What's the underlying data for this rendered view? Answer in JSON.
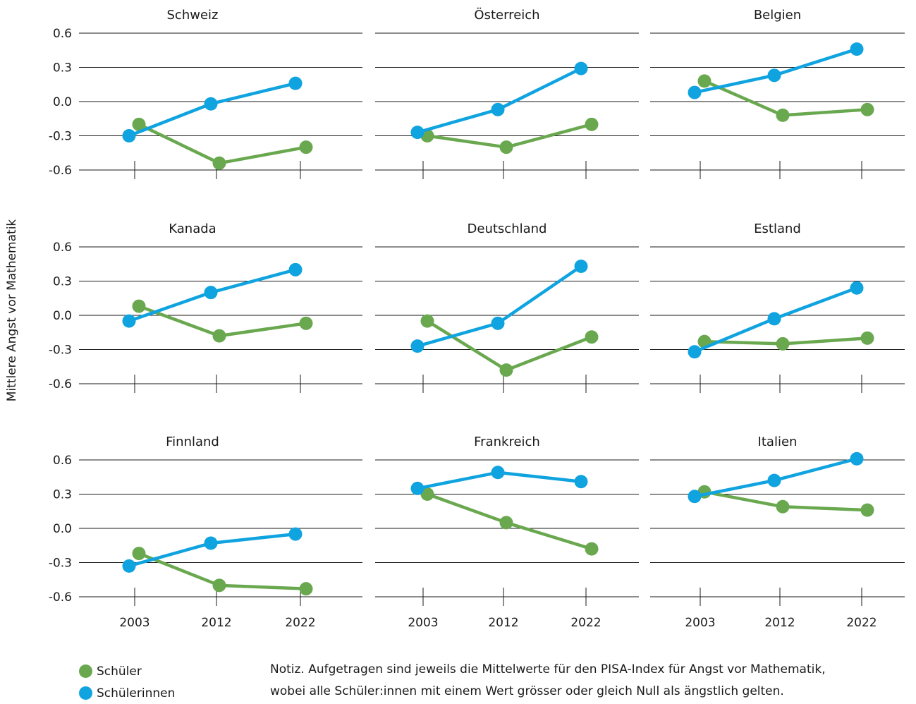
{
  "y_axis_label": "Mittlere Angst vor Mathematik",
  "colors": {
    "boys": "#6aa84f",
    "girls": "#0fa3df",
    "axis": "#1a1a1a"
  },
  "legend": {
    "boys": "Schüler",
    "girls": "Schülerinnen"
  },
  "note": {
    "line1": "Notiz. Aufgetragen sind jeweils die Mittelwerte für den PISA-Index für Angst vor Mathematik,",
    "line2": "wobei alle Schüler:innen mit einem Wert grösser oder gleich Null als ängstlich gelten."
  },
  "chart_data": {
    "type": "line",
    "layout": "small-multiples 3x3",
    "x": [
      "2003",
      "2012",
      "2022"
    ],
    "y_ticks": [
      "0.6",
      "0.3",
      "0.0",
      "-0.3",
      "-0.6"
    ],
    "ylim": [
      -0.6,
      0.6
    ],
    "series_names": [
      "Schüler",
      "Schülerinnen"
    ],
    "panels": [
      {
        "title": "Schweiz",
        "boys": [
          -0.2,
          -0.54,
          -0.4
        ],
        "girls": [
          -0.3,
          -0.02,
          0.16
        ]
      },
      {
        "title": "Österreich",
        "boys": [
          -0.3,
          -0.4,
          -0.2
        ],
        "girls": [
          -0.27,
          -0.07,
          0.29
        ]
      },
      {
        "title": "Belgien",
        "boys": [
          0.18,
          -0.12,
          -0.07
        ],
        "girls": [
          0.08,
          0.23,
          0.46
        ]
      },
      {
        "title": "Kanada",
        "boys": [
          0.08,
          -0.18,
          -0.07
        ],
        "girls": [
          -0.05,
          0.2,
          0.4
        ]
      },
      {
        "title": "Deutschland",
        "boys": [
          -0.05,
          -0.48,
          -0.19
        ],
        "girls": [
          -0.27,
          -0.07,
          0.43
        ]
      },
      {
        "title": "Estland",
        "boys": [
          -0.23,
          -0.25,
          -0.2
        ],
        "girls": [
          -0.32,
          -0.03,
          0.24
        ]
      },
      {
        "title": "Finnland",
        "boys": [
          -0.22,
          -0.5,
          -0.53
        ],
        "girls": [
          -0.33,
          -0.13,
          -0.05
        ]
      },
      {
        "title": "Frankreich",
        "boys": [
          0.3,
          0.05,
          -0.18
        ],
        "girls": [
          0.35,
          0.49,
          0.41
        ]
      },
      {
        "title": "Italien",
        "boys": [
          0.32,
          0.19,
          0.16
        ],
        "girls": [
          0.28,
          0.42,
          0.61
        ]
      }
    ]
  }
}
